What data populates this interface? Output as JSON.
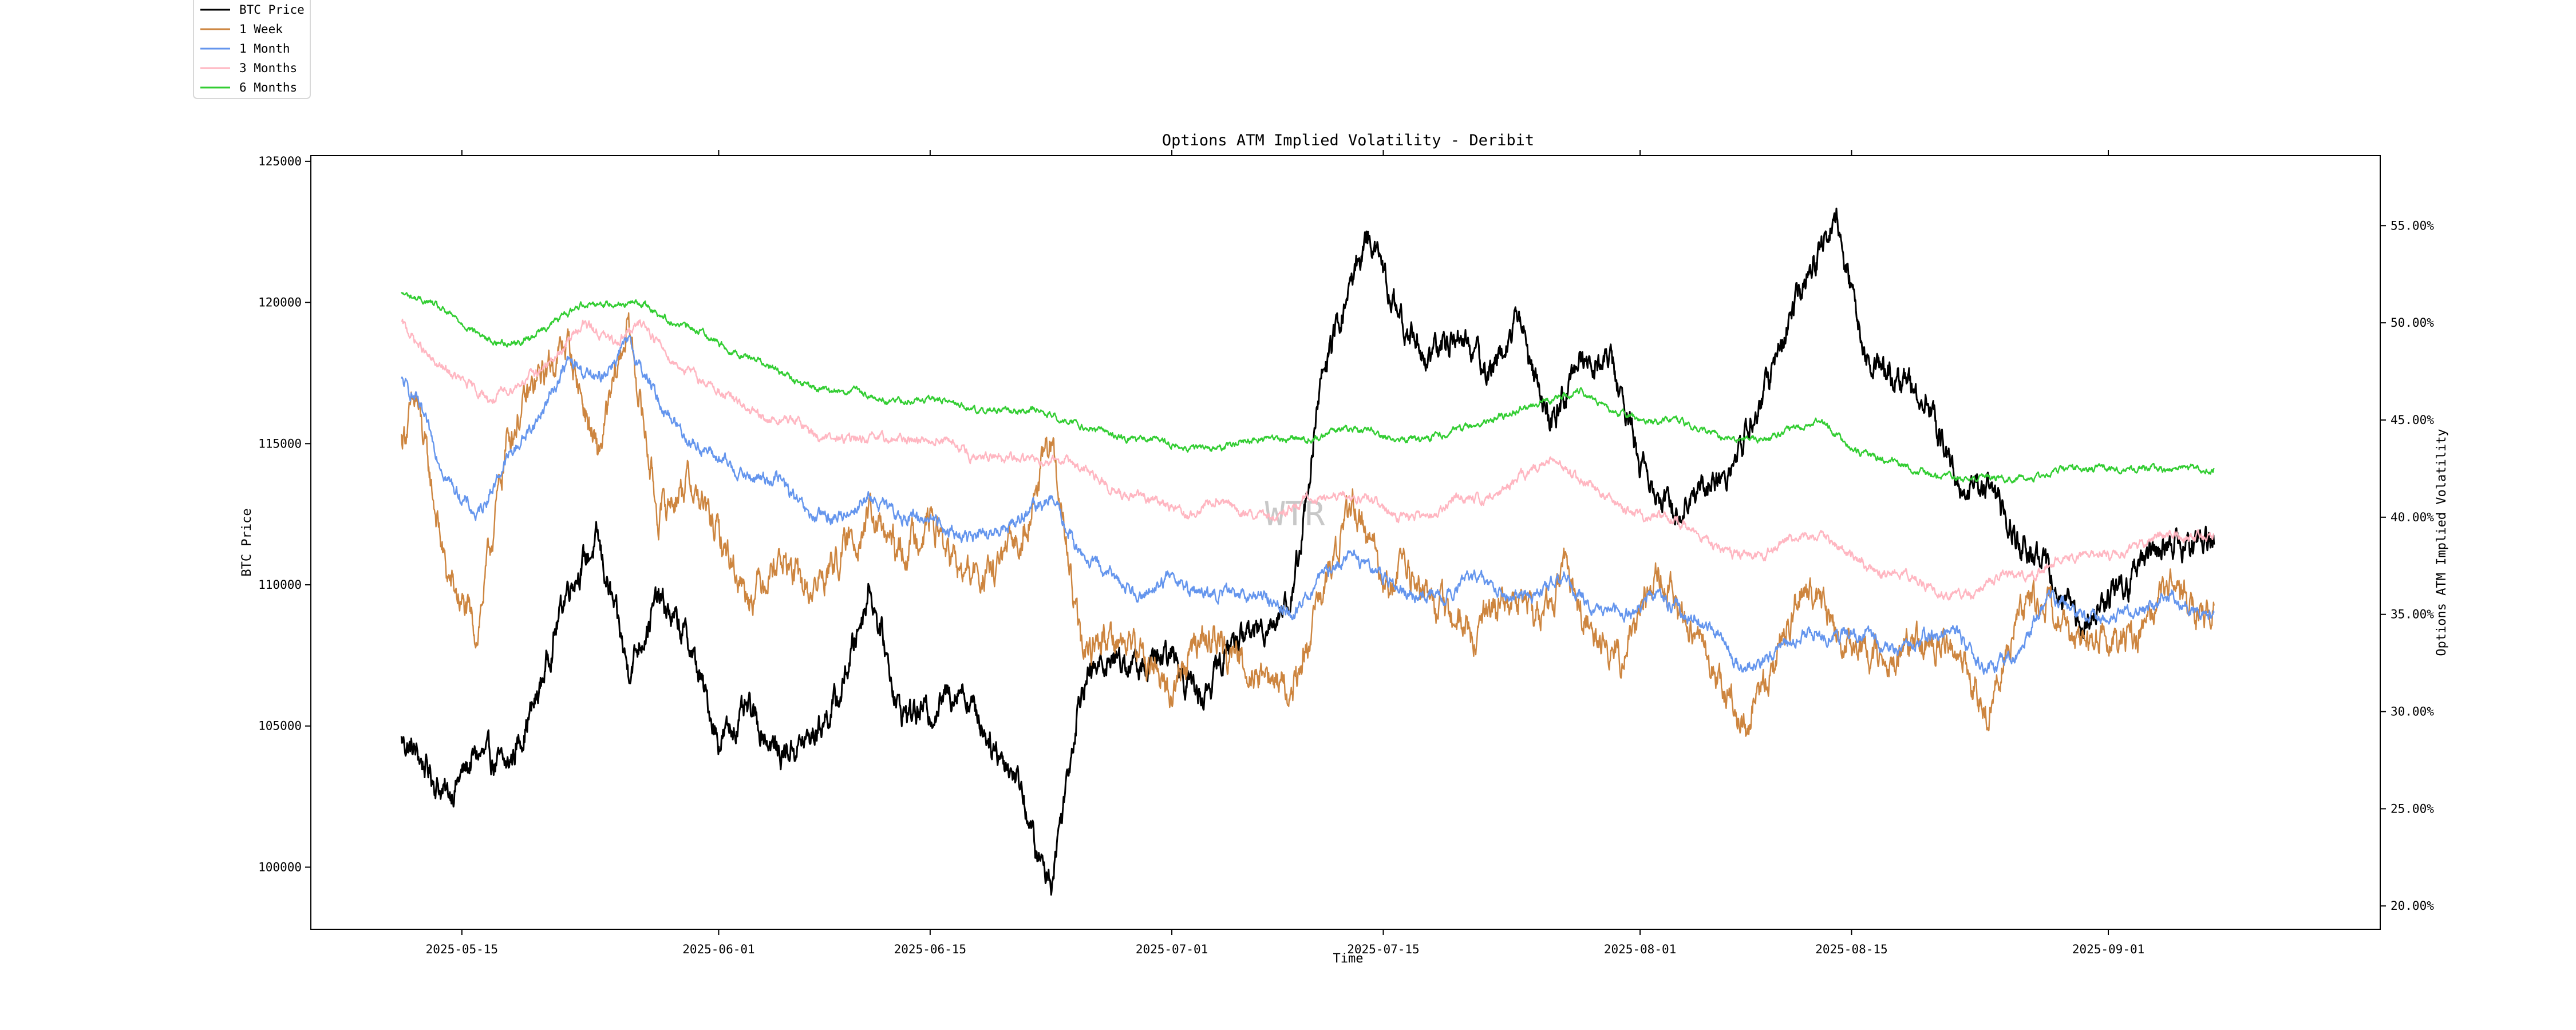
{
  "chart_data": {
    "type": "line",
    "title": "Options ATM Implied Volatility - Deribit",
    "xlabel": "Time",
    "ylabel_left": "BTC Price",
    "ylabel_right": "Options ATM Implied Volatility",
    "watermark": "WTR",
    "x_range": [
      "2025-05-05",
      "2025-09-19"
    ],
    "ylim_left": [
      97800,
      125200
    ],
    "ylim_right": [
      18.8,
      58.6
    ],
    "x_ticks": [
      "2025-05-15",
      "2025-06-01",
      "2025-06-15",
      "2025-07-01",
      "2025-07-15",
      "2025-08-01",
      "2025-08-15",
      "2025-09-01"
    ],
    "y_left_ticks": [
      100000,
      105000,
      110000,
      115000,
      120000,
      125000
    ],
    "y_left_tick_labels": [
      "100000",
      "105000",
      "110000",
      "115000",
      "120000",
      "125000"
    ],
    "y_right_ticks": [
      20,
      25,
      30,
      35,
      40,
      45,
      50,
      55
    ],
    "y_right_tick_labels": [
      "20.00%",
      "25.00%",
      "30.00%",
      "35.00%",
      "40.00%",
      "45.00%",
      "50.00%",
      "55.00%"
    ],
    "legend_position": "top-left",
    "grid": false,
    "series": [
      {
        "name": "BTC Price",
        "axis": "left",
        "color": "#000000",
        "x": [
          "2025-05-11",
          "2025-05-12",
          "2025-05-14",
          "2025-05-16",
          "2025-05-18",
          "2025-05-20",
          "2025-05-22",
          "2025-05-24",
          "2025-05-26",
          "2025-05-28",
          "2025-05-30",
          "2025-06-01",
          "2025-06-03",
          "2025-06-05",
          "2025-06-07",
          "2025-06-09",
          "2025-06-11",
          "2025-06-13",
          "2025-06-15",
          "2025-06-17",
          "2025-06-19",
          "2025-06-21",
          "2025-06-22",
          "2025-06-23",
          "2025-06-25",
          "2025-06-27",
          "2025-06-29",
          "2025-07-01",
          "2025-07-03",
          "2025-07-05",
          "2025-07-07",
          "2025-07-09",
          "2025-07-11",
          "2025-07-14",
          "2025-07-16",
          "2025-07-18",
          "2025-07-20",
          "2025-07-22",
          "2025-07-24",
          "2025-07-26",
          "2025-07-28",
          "2025-07-30",
          "2025-08-01",
          "2025-08-03",
          "2025-08-05",
          "2025-08-07",
          "2025-08-09",
          "2025-08-11",
          "2025-08-14",
          "2025-08-16",
          "2025-08-18",
          "2025-08-20",
          "2025-08-22",
          "2025-08-24",
          "2025-08-26",
          "2025-08-28",
          "2025-08-30",
          "2025-09-01",
          "2025-09-03",
          "2025-09-05",
          "2025-09-07",
          "2025-09-08"
        ],
        "y": [
          104500,
          104000,
          102500,
          104000,
          103500,
          106000,
          110000,
          111500,
          107000,
          109500,
          108000,
          104500,
          105500,
          104000,
          104500,
          106000,
          110000,
          105500,
          105500,
          106500,
          104500,
          103000,
          100500,
          99500,
          106500,
          107500,
          107000,
          107500,
          106000,
          108000,
          108500,
          109500,
          117500,
          122500,
          119500,
          118000,
          119000,
          117500,
          119500,
          115500,
          118000,
          118000,
          114500,
          112500,
          113500,
          114000,
          116500,
          119500,
          123000,
          118000,
          117500,
          116500,
          113500,
          113500,
          111500,
          110500,
          108500,
          109500,
          110500,
          111500,
          111500,
          111500
        ]
      },
      {
        "name": "1 Week",
        "axis": "right",
        "color": "#cd853f",
        "x": [
          "2025-05-11",
          "2025-05-12",
          "2025-05-14",
          "2025-05-16",
          "2025-05-18",
          "2025-05-20",
          "2025-05-22",
          "2025-05-24",
          "2025-05-26",
          "2025-05-28",
          "2025-05-30",
          "2025-06-01",
          "2025-06-03",
          "2025-06-05",
          "2025-06-07",
          "2025-06-09",
          "2025-06-11",
          "2025-06-13",
          "2025-06-15",
          "2025-06-17",
          "2025-06-19",
          "2025-06-21",
          "2025-06-23",
          "2025-06-25",
          "2025-06-27",
          "2025-06-29",
          "2025-07-01",
          "2025-07-03",
          "2025-07-05",
          "2025-07-07",
          "2025-07-09",
          "2025-07-11",
          "2025-07-13",
          "2025-07-15",
          "2025-07-17",
          "2025-07-19",
          "2025-07-21",
          "2025-07-23",
          "2025-07-25",
          "2025-07-27",
          "2025-07-29",
          "2025-07-31",
          "2025-08-02",
          "2025-08-04",
          "2025-08-06",
          "2025-08-08",
          "2025-08-10",
          "2025-08-12",
          "2025-08-14",
          "2025-08-16",
          "2025-08-18",
          "2025-08-20",
          "2025-08-22",
          "2025-08-24",
          "2025-08-26",
          "2025-08-28",
          "2025-08-30",
          "2025-09-01",
          "2025-09-03",
          "2025-09-05",
          "2025-09-07",
          "2025-09-08"
        ],
        "y": [
          44,
          46,
          37,
          34,
          44,
          47,
          49,
          43,
          50,
          40,
          42,
          39,
          36,
          38,
          36,
          38,
          40,
          38,
          40,
          37,
          37,
          39,
          44,
          33,
          34,
          33,
          31,
          34,
          33,
          32,
          31,
          36,
          41,
          37,
          37,
          35,
          34,
          36,
          35,
          37,
          34,
          33,
          37,
          35,
          32,
          29,
          33,
          37,
          34,
          33,
          33,
          34,
          33,
          30,
          35,
          36,
          33,
          34,
          34,
          37,
          35,
          36
        ]
      },
      {
        "name": "1 Month",
        "axis": "right",
        "color": "#6495ed",
        "x": [
          "2025-05-11",
          "2025-05-12",
          "2025-05-14",
          "2025-05-16",
          "2025-05-18",
          "2025-05-20",
          "2025-05-22",
          "2025-05-24",
          "2025-05-26",
          "2025-05-28",
          "2025-05-30",
          "2025-06-01",
          "2025-06-03",
          "2025-06-05",
          "2025-06-07",
          "2025-06-09",
          "2025-06-11",
          "2025-06-13",
          "2025-06-15",
          "2025-06-17",
          "2025-06-19",
          "2025-06-21",
          "2025-06-23",
          "2025-06-25",
          "2025-06-27",
          "2025-06-29",
          "2025-07-01",
          "2025-07-03",
          "2025-07-05",
          "2025-07-07",
          "2025-07-09",
          "2025-07-11",
          "2025-07-13",
          "2025-07-15",
          "2025-07-17",
          "2025-07-19",
          "2025-07-21",
          "2025-07-23",
          "2025-07-25",
          "2025-07-27",
          "2025-07-29",
          "2025-07-31",
          "2025-08-02",
          "2025-08-04",
          "2025-08-06",
          "2025-08-08",
          "2025-08-10",
          "2025-08-12",
          "2025-08-14",
          "2025-08-16",
          "2025-08-18",
          "2025-08-20",
          "2025-08-22",
          "2025-08-24",
          "2025-08-26",
          "2025-08-28",
          "2025-08-30",
          "2025-09-01",
          "2025-09-03",
          "2025-09-05",
          "2025-09-07",
          "2025-09-08"
        ],
        "y": [
          47,
          46,
          42,
          40,
          43,
          45,
          48,
          47,
          49,
          46,
          44,
          43,
          42,
          42,
          40,
          40,
          41,
          40,
          40,
          39,
          39,
          40,
          41,
          38,
          37,
          36,
          37,
          36,
          36,
          36,
          35,
          37,
          38,
          37,
          36,
          36,
          37,
          36,
          36,
          37,
          35,
          35,
          36,
          35,
          34,
          32,
          33,
          34,
          34,
          34,
          33,
          34,
          34,
          32,
          33,
          36,
          35,
          35,
          35,
          36,
          35,
          35
        ]
      },
      {
        "name": "3 Months",
        "axis": "right",
        "color": "#ffb6c1",
        "x": [
          "2025-05-11",
          "2025-05-13",
          "2025-05-15",
          "2025-05-17",
          "2025-05-19",
          "2025-05-21",
          "2025-05-23",
          "2025-05-25",
          "2025-05-27",
          "2025-05-29",
          "2025-05-31",
          "2025-06-02",
          "2025-06-04",
          "2025-06-06",
          "2025-06-08",
          "2025-06-10",
          "2025-06-12",
          "2025-06-14",
          "2025-06-16",
          "2025-06-18",
          "2025-06-20",
          "2025-06-22",
          "2025-06-24",
          "2025-06-26",
          "2025-06-28",
          "2025-06-30",
          "2025-07-02",
          "2025-07-04",
          "2025-07-06",
          "2025-07-08",
          "2025-07-10",
          "2025-07-12",
          "2025-07-14",
          "2025-07-16",
          "2025-07-18",
          "2025-07-20",
          "2025-07-22",
          "2025-07-24",
          "2025-07-26",
          "2025-07-28",
          "2025-07-30",
          "2025-08-01",
          "2025-08-03",
          "2025-08-05",
          "2025-08-07",
          "2025-08-09",
          "2025-08-11",
          "2025-08-13",
          "2025-08-15",
          "2025-08-17",
          "2025-08-19",
          "2025-08-21",
          "2025-08-23",
          "2025-08-25",
          "2025-08-27",
          "2025-08-29",
          "2025-08-31",
          "2025-09-02",
          "2025-09-04",
          "2025-09-06",
          "2025-09-08"
        ],
        "y": [
          50,
          48,
          47,
          46,
          47,
          48,
          50,
          49,
          50,
          48,
          47,
          46,
          45,
          45,
          44,
          44,
          44,
          44,
          44,
          43,
          43,
          43,
          43,
          42,
          41,
          41,
          40,
          41,
          40,
          40,
          41,
          41,
          41,
          40,
          40,
          41,
          41,
          42,
          43,
          42,
          41,
          40,
          40,
          39,
          38,
          38,
          39,
          39,
          38,
          37,
          37,
          36,
          36,
          37,
          37,
          38,
          38,
          38,
          39,
          39,
          39
        ]
      },
      {
        "name": "6 Months",
        "axis": "right",
        "color": "#32cd32",
        "x": [
          "2025-05-11",
          "2025-05-13",
          "2025-05-15",
          "2025-05-17",
          "2025-05-19",
          "2025-05-21",
          "2025-05-23",
          "2025-05-25",
          "2025-05-27",
          "2025-05-29",
          "2025-05-31",
          "2025-06-02",
          "2025-06-04",
          "2025-06-06",
          "2025-06-08",
          "2025-06-10",
          "2025-06-12",
          "2025-06-14",
          "2025-06-16",
          "2025-06-18",
          "2025-06-20",
          "2025-06-22",
          "2025-06-24",
          "2025-06-26",
          "2025-06-28",
          "2025-06-30",
          "2025-07-02",
          "2025-07-04",
          "2025-07-06",
          "2025-07-08",
          "2025-07-10",
          "2025-07-12",
          "2025-07-14",
          "2025-07-16",
          "2025-07-18",
          "2025-07-20",
          "2025-07-22",
          "2025-07-24",
          "2025-07-26",
          "2025-07-28",
          "2025-07-30",
          "2025-08-01",
          "2025-08-03",
          "2025-08-05",
          "2025-08-07",
          "2025-08-09",
          "2025-08-11",
          "2025-08-13",
          "2025-08-15",
          "2025-08-17",
          "2025-08-19",
          "2025-08-21",
          "2025-08-23",
          "2025-08-25",
          "2025-08-27",
          "2025-08-29",
          "2025-08-31",
          "2025-09-02",
          "2025-09-04",
          "2025-09-06",
          "2025-09-08"
        ],
        "y": [
          51.5,
          51,
          50,
          49,
          49,
          50,
          51,
          51,
          51,
          50,
          49.5,
          48.5,
          48,
          47,
          46.5,
          46.5,
          46,
          46,
          46,
          45.5,
          45.5,
          45.5,
          45,
          44.5,
          44,
          44,
          43.5,
          43.5,
          44,
          44,
          44,
          44.5,
          44.5,
          44,
          44,
          44.5,
          45,
          45.5,
          46,
          46.5,
          45.5,
          45,
          45,
          44.5,
          44,
          44,
          44.5,
          45,
          43.5,
          43,
          42.5,
          42,
          42,
          42,
          42,
          42.5,
          42.5,
          42.5,
          42.5,
          42.5,
          42.5
        ]
      }
    ]
  }
}
